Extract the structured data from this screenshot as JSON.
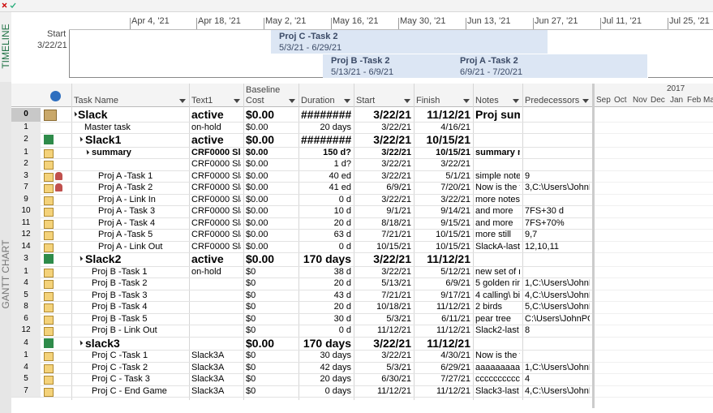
{
  "timeline": {
    "label": "TIMELINE",
    "start_label": "Start",
    "start_date": "3/22/21",
    "dates": [
      "Apr 4, '21",
      "Apr 18, '21",
      "May 2, '21",
      "May 16, '21",
      "May 30, '21",
      "Jun 13, '21",
      "Jun 27, '21",
      "Jul 11, '21",
      "Jul 25, '21"
    ],
    "bars": [
      {
        "name": "Proj C -Task 2",
        "dates": "5/3/21 - 6/29/21"
      },
      {
        "name": "Proj B -Task 2",
        "dates": "5/13/21 - 6/9/21"
      },
      {
        "name": "Proj A -Task 2",
        "dates": "6/9/21 - 7/20/21"
      }
    ]
  },
  "view_label": "GANTT CHART",
  "table": {
    "columns": [
      "Task Name",
      "Text1",
      "Baseline Cost",
      "Duration",
      "Start",
      "Finish",
      "Notes",
      "Predecessors"
    ],
    "rows": [
      [
        "0",
        "Slack",
        "active",
        "$0.00",
        "########",
        "3/22/21",
        "11/12/21",
        "Proj sum",
        ""
      ],
      [
        "1",
        "Master task",
        "on-hold",
        "$0.00",
        "20 days",
        "3/22/21",
        "4/16/21",
        "",
        ""
      ],
      [
        "2",
        "Slack1",
        "active",
        "$0.00",
        "########",
        "3/22/21",
        "10/15/21",
        "",
        ""
      ],
      [
        "1",
        "summary",
        "CRF0000 Sla",
        "$0.00",
        "150 d?",
        "3/22/21",
        "10/15/21",
        "summary no",
        ""
      ],
      [
        "2",
        "",
        "CRF0000 Sla",
        "$0.00",
        "1 d?",
        "3/22/21",
        "3/22/21",
        "",
        ""
      ],
      [
        "3",
        "Proj A -Task 1",
        "CRF0000 Sla",
        "$0.00",
        "40 ed",
        "3/22/21",
        "5/1/21",
        "simple note",
        "9"
      ],
      [
        "7",
        "Proj A -Task 2",
        "CRF0000 Sla",
        "$0.00",
        "41 ed",
        "6/9/21",
        "7/20/21",
        "Now is the ti",
        "3,C:\\Users\\JohnP"
      ],
      [
        "9",
        "Proj A - Link In",
        "CRF0000 Sla",
        "$0.00",
        "0 d",
        "3/22/21",
        "3/22/21",
        "more notes",
        ""
      ],
      [
        "10",
        "Proj A - Task 3",
        "CRF0000 Sla",
        "$0.00",
        "10 d",
        "9/1/21",
        "9/14/21",
        "and more",
        "7FS+30 d"
      ],
      [
        "11",
        "Proj A - Task 4",
        "CRF0000 Sla",
        "$0.00",
        "20 d",
        "8/18/21",
        "9/15/21",
        "and more",
        "7FS+70%"
      ],
      [
        "12",
        "Proj A -Task 5",
        "CRF0000 Sla",
        "$0.00",
        "63 d",
        "7/21/21",
        "10/15/21",
        "more still",
        "9,7"
      ],
      [
        "14",
        "Proj A - Link Out",
        "CRF0000 Sla",
        "$0.00",
        "0 d",
        "10/15/21",
        "10/15/21",
        "SlackA-last",
        "12,10,11"
      ],
      [
        "3",
        "Slack2",
        "active",
        "$0.00",
        "170 days",
        "3/22/21",
        "11/12/21",
        "",
        ""
      ],
      [
        "1",
        "Proj B -Task 1",
        "on-hold",
        "$0",
        "38 d",
        "3/22/21",
        "5/12/21",
        "new set of no",
        ""
      ],
      [
        "4",
        "Proj B -Task 2",
        "",
        "$0",
        "20 d",
        "5/13/21",
        "6/9/21",
        "5 golden ring",
        "1,C:\\Users\\JohnP"
      ],
      [
        "5",
        "Proj B -Task 3",
        "",
        "$0",
        "43 d",
        "7/21/21",
        "9/17/21",
        "4 calling\\ bird",
        "4,C:\\Users\\JohnP"
      ],
      [
        "8",
        "Proj B -Task 4",
        "",
        "$0",
        "20 d",
        "10/18/21",
        "11/12/21",
        "2 birds",
        "5,C:\\Users\\JohnP"
      ],
      [
        "6",
        "Proj B -Task 5",
        "",
        "$0",
        "30 d",
        "5/3/21",
        "6/11/21",
        "pear tree",
        "C:\\Users\\JohnPC\\"
      ],
      [
        "12",
        "Proj B - Link Out",
        "",
        "$0",
        "0 d",
        "11/12/21",
        "11/12/21",
        "Slack2-last",
        "8"
      ],
      [
        "4",
        "slack3",
        "",
        "$0.00",
        "170 days",
        "3/22/21",
        "11/12/21",
        "",
        ""
      ],
      [
        "1",
        "Proj C -Task 1",
        "Slack3A",
        "$0",
        "30 days",
        "3/22/21",
        "4/30/21",
        "Now is the ti",
        ""
      ],
      [
        "4",
        "Proj C -Task 2",
        "Slack3A",
        "$0",
        "42 days",
        "5/3/21",
        "6/29/21",
        "aaaaaaaaaa",
        "1,C:\\Users\\JohnP"
      ],
      [
        "5",
        "Proj C - Task 3",
        "Slack3A",
        "$0",
        "20 days",
        "6/30/21",
        "7/27/21",
        "cccccccccc",
        "4"
      ],
      [
        "7",
        "Proj C - End Game",
        "Slack3A",
        "$0",
        "0 days",
        "11/12/21",
        "11/12/21",
        "Slack3-last",
        "4,C:\\Users\\JohnP"
      ]
    ]
  },
  "gantt": {
    "year": "2017",
    "months": [
      "Sep",
      "Oct",
      "Nov",
      "Dec",
      "Jan",
      "Feb",
      "Ma"
    ]
  }
}
